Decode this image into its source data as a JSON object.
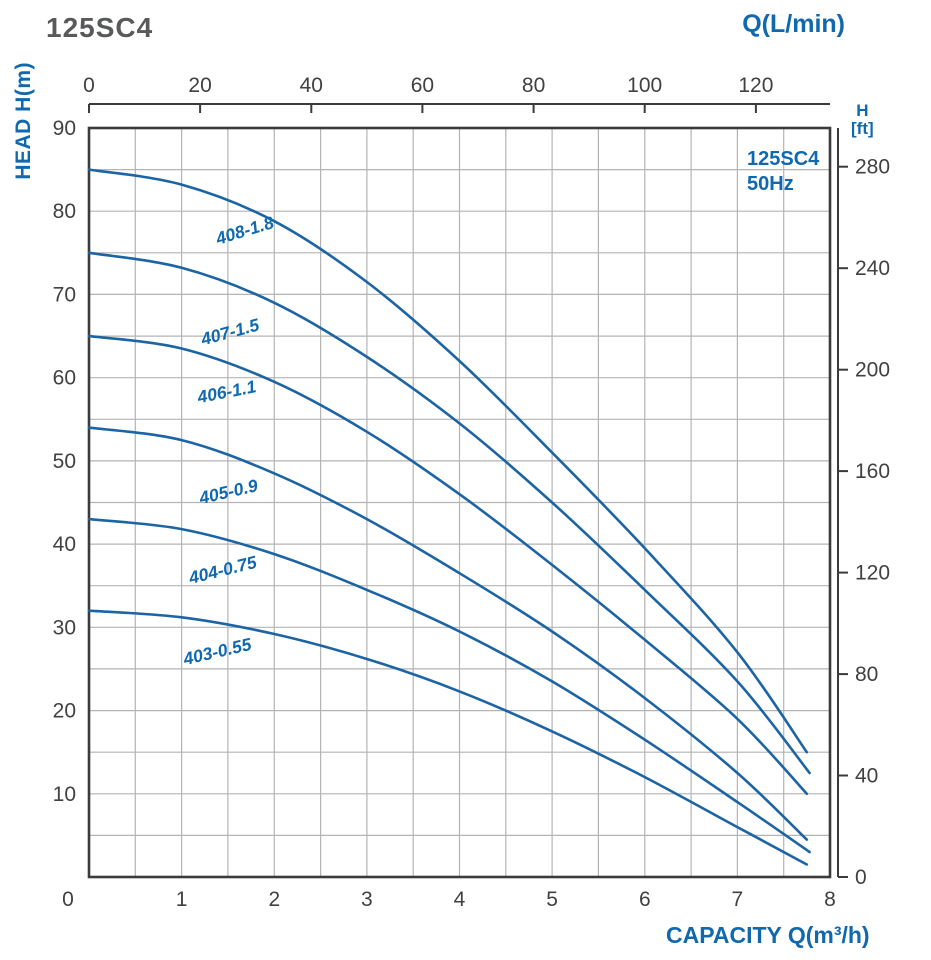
{
  "title": "125SC4",
  "legend": {
    "model": "125SC4",
    "frequency": "50Hz"
  },
  "labels": {
    "top_axis": "Q(L/min)",
    "left_axis": "HEAD H(m)",
    "right_axis_line1": "H",
    "right_axis_line2": "[ft]",
    "bottom_axis": "CAPACITY Q(m³/h)"
  },
  "chart_data": {
    "type": "line",
    "title": "125SC4",
    "legend": {
      "model": "125SC4",
      "frequency": "50Hz",
      "position": "top-right-inside"
    },
    "axes": {
      "bottom": {
        "label": "CAPACITY Q(m³/h)",
        "unit": "m³/h",
        "min": 0,
        "max": 8,
        "tick_values": [
          0,
          1,
          2,
          3,
          4,
          5,
          6,
          7,
          8
        ],
        "grid_step": 0.5
      },
      "top": {
        "label": "Q(L/min)",
        "unit": "L/min",
        "tick_values": [
          0,
          20,
          40,
          60,
          80,
          100,
          120
        ],
        "lmin_per_m3h": 16.6667
      },
      "left": {
        "label": "HEAD H(m)",
        "unit": "m",
        "min": 0,
        "max": 90,
        "tick_values": [
          10,
          20,
          30,
          40,
          50,
          60,
          70,
          80,
          90
        ],
        "grid_step": 5
      },
      "right": {
        "label": "H [ft]",
        "unit": "ft",
        "tick_values": [
          0,
          40,
          80,
          120,
          160,
          200,
          240,
          280
        ],
        "ft_per_m": 3.28084
      }
    },
    "grid": true,
    "series": [
      {
        "name": "408-1.8",
        "label_q": 1.7,
        "label_h": 77.0,
        "label_angle": -17,
        "points": [
          [
            0,
            85
          ],
          [
            1,
            83.2
          ],
          [
            2,
            78.8
          ],
          [
            3,
            71.5
          ],
          [
            4,
            62
          ],
          [
            5,
            51
          ],
          [
            6,
            39.5
          ],
          [
            7,
            27
          ],
          [
            7.75,
            15
          ]
        ]
      },
      {
        "name": "407-1.5",
        "label_q": 1.54,
        "label_h": 64.8,
        "label_angle": -15,
        "points": [
          [
            0,
            75
          ],
          [
            1,
            73.2
          ],
          [
            2,
            69
          ],
          [
            3,
            62.5
          ],
          [
            4,
            54.5
          ],
          [
            5,
            45
          ],
          [
            6,
            34.5
          ],
          [
            7,
            23.5
          ],
          [
            7.78,
            12.5
          ]
        ]
      },
      {
        "name": "406-1.1",
        "label_q": 1.5,
        "label_h": 57.6,
        "label_angle": -11,
        "points": [
          [
            0,
            65
          ],
          [
            1,
            63.5
          ],
          [
            2,
            59.5
          ],
          [
            3,
            53.5
          ],
          [
            4,
            46
          ],
          [
            5,
            37.5
          ],
          [
            6,
            28.5
          ],
          [
            7,
            19
          ],
          [
            7.75,
            10
          ]
        ]
      },
      {
        "name": "405-0.9",
        "label_q": 1.52,
        "label_h": 45.6,
        "label_angle": -13,
        "points": [
          [
            0,
            54
          ],
          [
            1,
            52.5
          ],
          [
            2,
            48.5
          ],
          [
            3,
            43
          ],
          [
            4,
            36.5
          ],
          [
            5,
            29.5
          ],
          [
            6,
            21.5
          ],
          [
            7,
            12.5
          ],
          [
            7.75,
            4.5
          ]
        ]
      },
      {
        "name": "404-0.75",
        "label_q": 1.46,
        "label_h": 36.2,
        "label_angle": -14,
        "points": [
          [
            0,
            43
          ],
          [
            1,
            41.8
          ],
          [
            2,
            38.8
          ],
          [
            3,
            34.5
          ],
          [
            4,
            29.5
          ],
          [
            5,
            23.5
          ],
          [
            6,
            16.5
          ],
          [
            7,
            9
          ],
          [
            7.78,
            3
          ]
        ]
      },
      {
        "name": "403-0.55",
        "label_q": 1.4,
        "label_h": 26.4,
        "label_angle": -13,
        "points": [
          [
            0,
            32
          ],
          [
            1,
            31.2
          ],
          [
            2,
            29.2
          ],
          [
            3,
            26.2
          ],
          [
            4,
            22.3
          ],
          [
            5,
            17.5
          ],
          [
            6,
            12
          ],
          [
            7,
            6
          ],
          [
            7.75,
            1.5
          ]
        ]
      }
    ],
    "colors": {
      "curve": "#1c64a4",
      "grid": "#b4b4b4",
      "axis": "#3b3b3b",
      "tick_text": "#414042",
      "accent_text": "#1068af",
      "title_text": "#58595b"
    }
  }
}
